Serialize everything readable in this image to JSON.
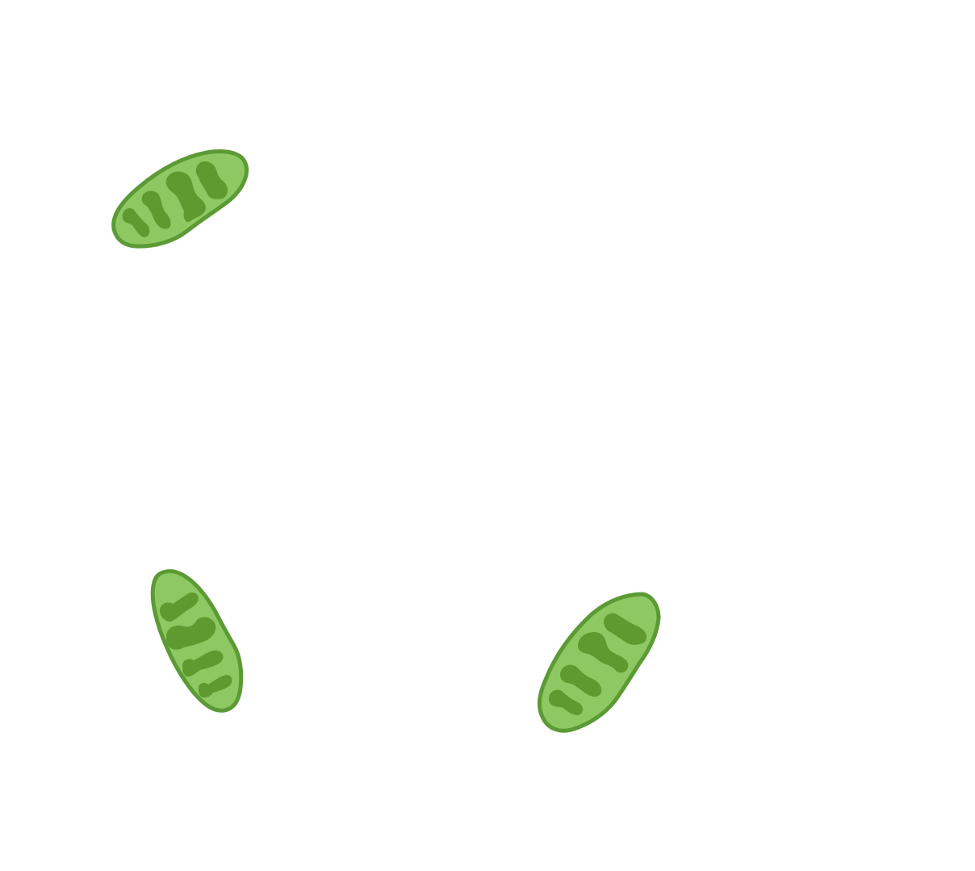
{
  "canvas": {
    "background": "#ffffff"
  },
  "organelles": [
    {
      "name": "chloroplast",
      "icon": "chloroplast-icon",
      "fill_color": "#8dc862",
      "outline_color": "#5b9a34",
      "grana_color": "#5e9a2f"
    },
    {
      "name": "chloroplast",
      "icon": "chloroplast-icon",
      "fill_color": "#8dc862",
      "outline_color": "#5b9a34",
      "grana_color": "#5e9a2f"
    },
    {
      "name": "chloroplast",
      "icon": "chloroplast-icon",
      "fill_color": "#8dc862",
      "outline_color": "#5b9a34",
      "grana_color": "#5e9a2f"
    }
  ]
}
